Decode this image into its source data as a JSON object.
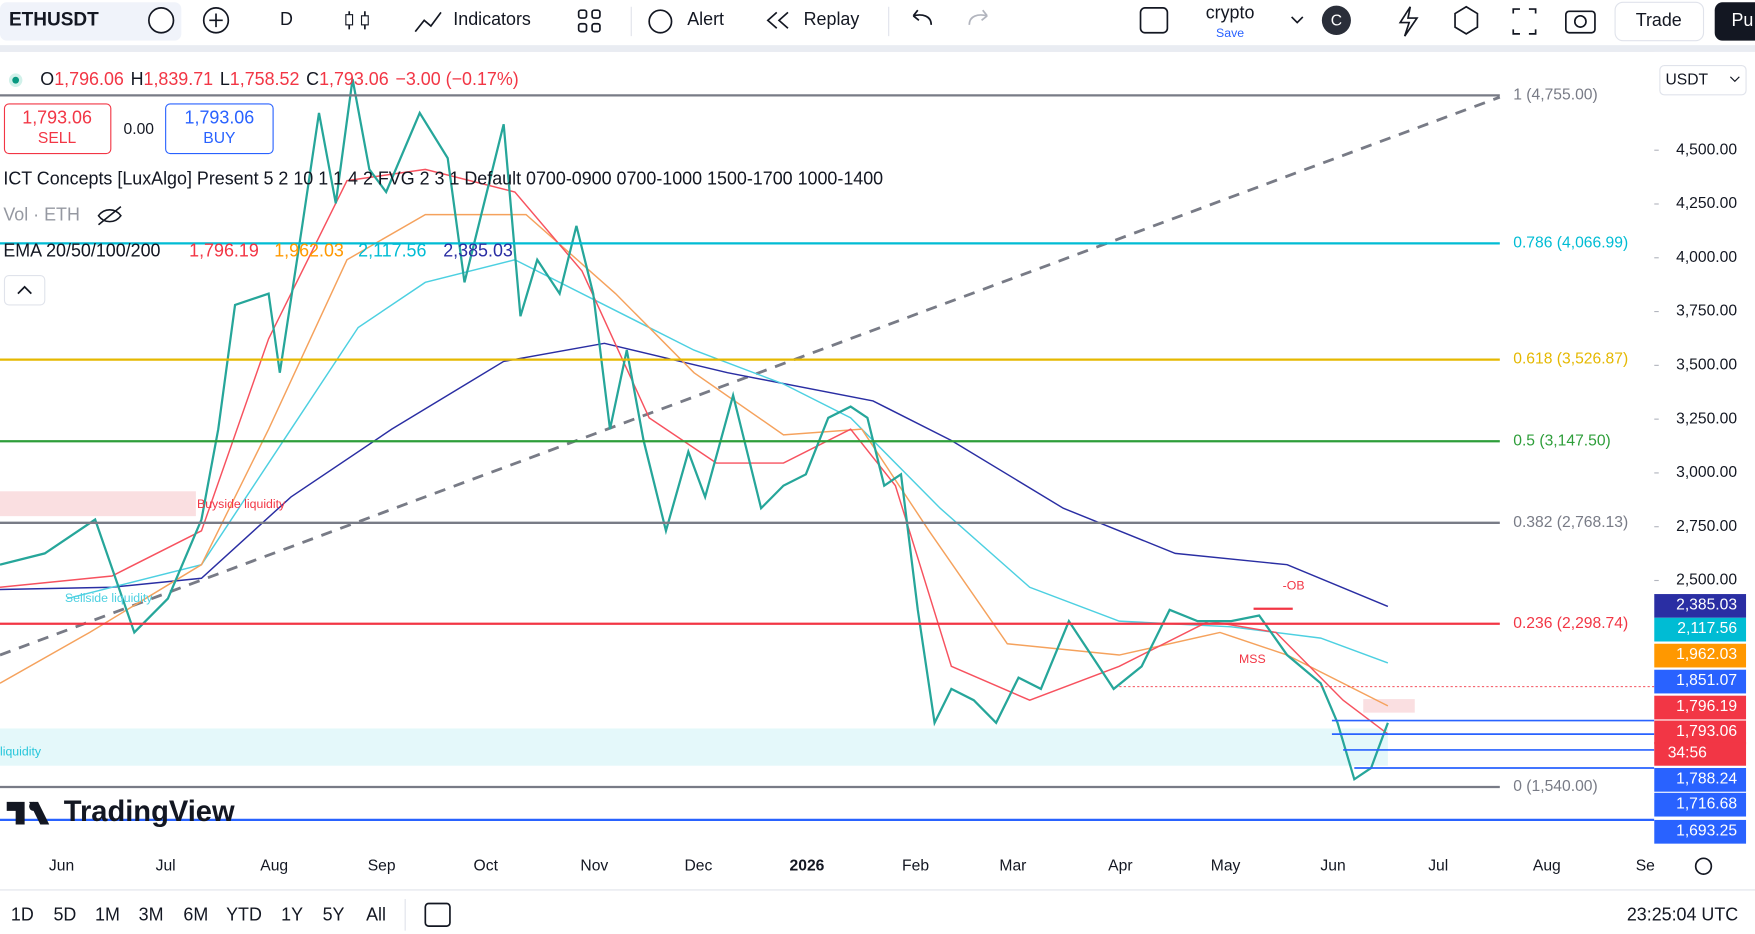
{
  "toolbar": {
    "symbol": "ETHUSDT",
    "interval": "D",
    "indicators": "Indicators",
    "alert": "Alert",
    "replay": "Replay",
    "layout": "crypto",
    "save": "Save",
    "avatar": "C",
    "trade": "Trade",
    "publish": "Pu"
  },
  "legend": {
    "ohlc": [
      {
        "label": "O",
        "value": "1,796.06"
      },
      {
        "label": "H",
        "value": "1,839.71"
      },
      {
        "label": "L",
        "value": "1,758.52"
      },
      {
        "label": "C",
        "value": "1,793.06"
      }
    ],
    "change": "−3.00 (−0.17%)",
    "sell": {
      "price": "1,793.06",
      "label": "SELL"
    },
    "spread": "0.00",
    "buy": {
      "price": "1,793.06",
      "label": "BUY"
    },
    "ict": "ICT Concepts [LuxAlgo] Present 5 2 10 1 1 4 2 FVG 2 3 1 Default 0700-0900 0700-1000 1500-1700 1000-1400",
    "vol": "Vol · ETH",
    "ema": {
      "name": "EMA 20/50/100/200",
      "values": [
        {
          "text": "1,796.19",
          "color": "#f23645"
        },
        {
          "text": "1,962.03",
          "color": "#ff9800"
        },
        {
          "text": "2,117.56",
          "color": "#00bcd4"
        },
        {
          "text": "2,385.03",
          "color": "#2a2ea3"
        }
      ]
    }
  },
  "price_axis": {
    "currency": "USDT",
    "ticks": [
      {
        "value": 4500,
        "label": "4,500.00"
      },
      {
        "value": 4250,
        "label": "4,250.00"
      },
      {
        "value": 4000,
        "label": "4,000.00"
      },
      {
        "value": 3750,
        "label": "3,750.00"
      },
      {
        "value": 3500,
        "label": "3,500.00"
      },
      {
        "value": 3250,
        "label": "3,250.00"
      },
      {
        "value": 3000,
        "label": "3,000.00"
      },
      {
        "value": 2750,
        "label": "2,750.00"
      },
      {
        "value": 2500,
        "label": "2,500.00"
      }
    ]
  },
  "fibs": [
    {
      "label": "1 (4,755.00)",
      "price": 4755,
      "color": "#787b86"
    },
    {
      "label": "0.786 (4,066.99)",
      "price": 4066.99,
      "color": "#00bcd4"
    },
    {
      "label": "0.618 (3,526.87)",
      "price": 3526.87,
      "color": "#e5b800"
    },
    {
      "label": "0.5 (3,147.50)",
      "price": 3147.5,
      "color": "#2e9e3a"
    },
    {
      "label": "0.382 (2,768.13)",
      "price": 2768.13,
      "color": "#787b86"
    },
    {
      "label": "0.236 (2,298.74)",
      "price": 2298.74,
      "color": "#f23645"
    },
    {
      "label": "0 (1,540.00)",
      "price": 1540,
      "color": "#787b86"
    }
  ],
  "price_tags": [
    {
      "value": 2385.03,
      "label": "2,385.03",
      "color": "#2a2ea3"
    },
    {
      "value": 2117.56,
      "label": "2,117.56",
      "color": "#00bcd4"
    },
    {
      "value": 1962.03,
      "label": "1,962.03",
      "color": "#ff9800"
    },
    {
      "value": 1851.07,
      "label": "1,851.07",
      "color": "#2962ff"
    },
    {
      "value": 1796.19,
      "label": "1,796.19",
      "color": "#f23645"
    },
    {
      "value": 1793.06,
      "label": "1,793.06",
      "color": "#f23645"
    },
    {
      "value": 1788.24,
      "label": "1,788.24",
      "color": "#2962ff"
    },
    {
      "value": 1716.68,
      "label": "1,716.68",
      "color": "#2962ff"
    },
    {
      "value": 1693.25,
      "label": "1,693.25",
      "color": "#2962ff"
    }
  ],
  "countdown": "34:56",
  "annotations": {
    "ob": "-OB",
    "mss": "MSS",
    "buyside": "Buyside liquidity",
    "sellside": "Sellside liquidity",
    "liquidity": "liquidity"
  },
  "time_axis": [
    "Jun",
    "Jul",
    "Aug",
    "Sep",
    "Oct",
    "Nov",
    "Dec",
    "2026",
    "Feb",
    "Mar",
    "Apr",
    "May",
    "Jun",
    "Jul",
    "Aug",
    "Se"
  ],
  "logo": "TradingView",
  "ranges": [
    "1D",
    "5D",
    "1M",
    "3M",
    "6M",
    "YTD",
    "1Y",
    "5Y",
    "All"
  ],
  "clock": "23:25:04 UTC"
}
